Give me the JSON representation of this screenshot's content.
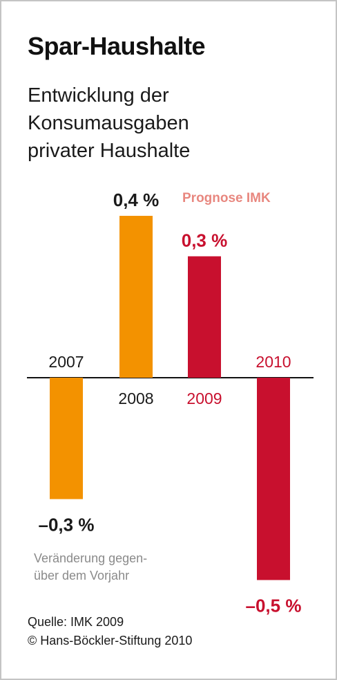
{
  "title": "Spar-Haushalte",
  "subtitle": [
    "Entwicklung der",
    "Konsumausgaben",
    "privater Haushalte"
  ],
  "forecast_label": "Prognose IMK",
  "note": [
    "Veränderung gegen-",
    "über dem Vorjahr"
  ],
  "footer": {
    "source": "Quelle: IMK 2009",
    "copyright": "© Hans-Böckler-Stiftung 2010"
  },
  "colors": {
    "actual": "#f39200",
    "forecast": "#c8102e",
    "forecast_label": "#e8877f",
    "text": "#1a1a1a",
    "axis": "#111111"
  },
  "chart_data": {
    "type": "bar",
    "categories": [
      "2007",
      "2008",
      "2009",
      "2010"
    ],
    "values": [
      -0.3,
      0.4,
      0.3,
      -0.5
    ],
    "value_labels": [
      "–0,3 %",
      "0,4 %",
      "0,3 %",
      "–0,5 %"
    ],
    "forecast": [
      false,
      false,
      true,
      true
    ],
    "ylabel": "Veränderung gegenüber dem Vorjahr",
    "unit": "%",
    "grid": false,
    "legend": "none"
  }
}
